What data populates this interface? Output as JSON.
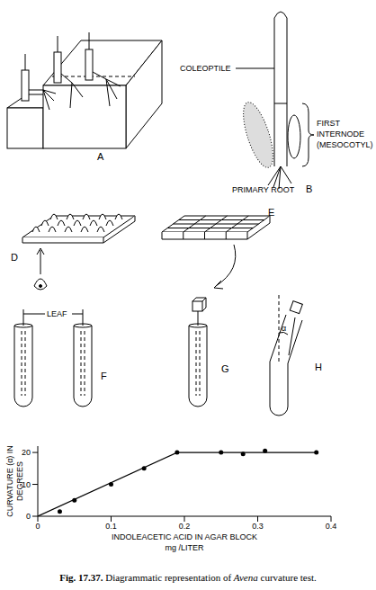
{
  "panels": [
    "A",
    "B",
    "D",
    "E",
    "F",
    "G",
    "H"
  ],
  "B_labels": {
    "coleoptile": "COLEOPTILE",
    "internode": [
      "FIRST",
      "INTERNODE",
      "(MESOCOTYL)"
    ],
    "root": "PRIMARY ROOT"
  },
  "F_label": "LEAF",
  "H_angle": "α",
  "chart_data": {
    "type": "line",
    "y_label": "CURVATURE (α) IN DEGREES",
    "x_label": [
      "INDOLEACETIC ACID IN AGAR BLOCK",
      "mg /LITER"
    ],
    "xlim": [
      0,
      0.4
    ],
    "ylim": [
      0,
      22
    ],
    "xticks": [
      0,
      0.1,
      0.2,
      0.3,
      0.4
    ],
    "yticks": [
      0,
      10,
      20
    ],
    "series": [
      {
        "type": "scatter",
        "color": "#000000",
        "marker": "circle",
        "x": [
          0.03,
          0.05,
          0.1,
          0.145,
          0.19,
          0.25,
          0.28,
          0.31,
          0.38
        ],
        "values": [
          1.5,
          5,
          10,
          15,
          20,
          20,
          19.5,
          20.5,
          20
        ]
      },
      {
        "type": "line",
        "color": "#000000",
        "x": [
          0,
          0.19,
          0.38
        ],
        "values": [
          0,
          20,
          20
        ]
      }
    ]
  },
  "caption": {
    "label": "Fig. 17.37.",
    "before": " Diagrammatic representation of ",
    "italic": "Avena",
    "after": " curvature test."
  }
}
